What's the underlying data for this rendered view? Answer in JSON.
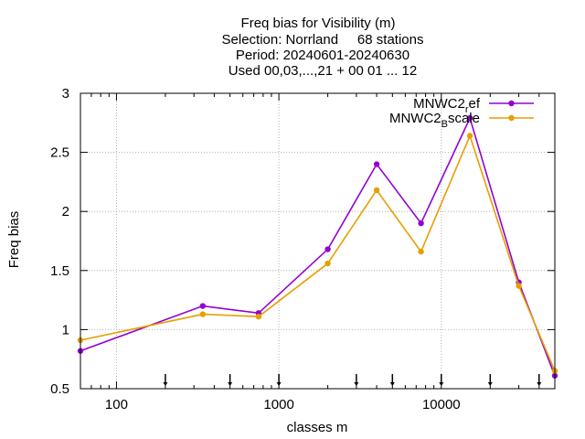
{
  "chart_data": {
    "type": "line",
    "title": [
      "Freq bias  for Visibility (m)",
      "Selection: Norrland     68 stations",
      "Period: 20240601-20240630",
      "Used 00,03,...,21 + 00 01 ... 12"
    ],
    "xlabel": "classes m",
    "ylabel": "Freq bias",
    "xscale": "log",
    "xlim": [
      60,
      50000
    ],
    "ylim": [
      0.5,
      3
    ],
    "xticks": [
      100,
      1000,
      10000
    ],
    "xtick_labels": [
      "100",
      "1000",
      "10000"
    ],
    "yticks": [
      0.5,
      1,
      1.5,
      2,
      2.5,
      3
    ],
    "ytick_labels": [
      "0.5",
      "1",
      "1.5",
      "2",
      "2.5",
      "3"
    ],
    "grid": true,
    "legend_position": "top-right",
    "class_markers": [
      200,
      500,
      1000,
      3000,
      5000,
      10000,
      20000,
      40000
    ],
    "x": [
      60,
      340,
      750,
      2000,
      4000,
      7500,
      15000,
      30000,
      50000
    ],
    "series": [
      {
        "name_main": "MNWC2",
        "name_sub": "r",
        "name_tail": "ef",
        "color": "#9400d3",
        "values": [
          0.82,
          1.2,
          1.14,
          1.68,
          2.4,
          1.9,
          2.79,
          1.4,
          0.61
        ]
      },
      {
        "name_main": "MNWC2",
        "name_sub": "B",
        "name_tail": "scale",
        "color": "#e69f00",
        "values": [
          0.91,
          1.13,
          1.11,
          1.56,
          2.18,
          1.66,
          2.64,
          1.37,
          0.65
        ]
      }
    ]
  }
}
